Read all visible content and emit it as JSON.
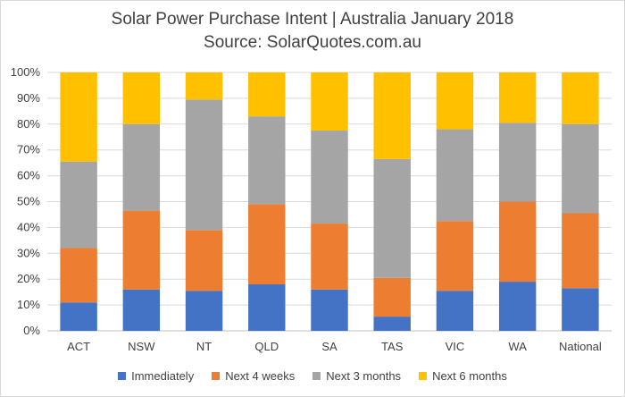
{
  "chart_data": {
    "type": "bar",
    "stacked": true,
    "title": "Solar Power Purchase Intent | Australia January 2018",
    "subtitle": "Source: SolarQuotes.com.au",
    "categories": [
      "ACT",
      "NSW",
      "NT",
      "QLD",
      "SA",
      "TAS",
      "VIC",
      "WA",
      "National"
    ],
    "series": [
      {
        "name": "Immediately",
        "color": "#4472c4",
        "values": [
          11,
          16,
          15.5,
          18,
          16,
          5.5,
          15.5,
          19,
          16.5
        ]
      },
      {
        "name": "Next 4 weeks",
        "color": "#ed7d31",
        "values": [
          21,
          30.5,
          23.5,
          31,
          25.5,
          15,
          27,
          31,
          29
        ]
      },
      {
        "name": "Next 3 months",
        "color": "#a5a5a5",
        "values": [
          33.5,
          33.5,
          50.5,
          34,
          36,
          46,
          35.5,
          30.5,
          34.5
        ]
      },
      {
        "name": "Next 6 months",
        "color": "#ffc000",
        "values": [
          34.5,
          20,
          10.5,
          17,
          22.5,
          33.5,
          22,
          19.5,
          20
        ]
      }
    ],
    "yticks": [
      "0%",
      "10%",
      "20%",
      "30%",
      "40%",
      "50%",
      "60%",
      "70%",
      "80%",
      "90%",
      "100%"
    ],
    "ylim": [
      0,
      100
    ],
    "grid": true,
    "legend_position": "bottom"
  }
}
